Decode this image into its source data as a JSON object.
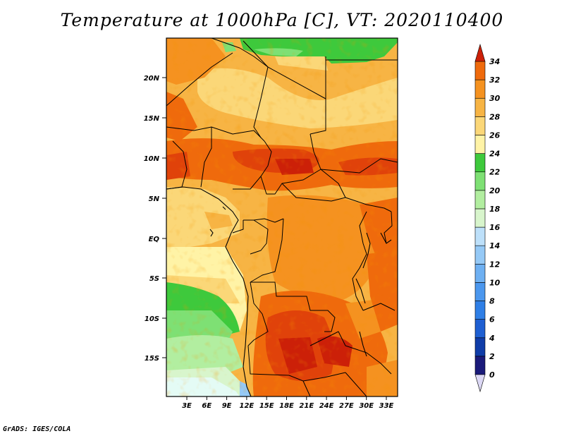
{
  "title": "Temperature at 1000hPa [C], VT: 2020110400",
  "credit": "GrADS: IGES/COLA",
  "map": {
    "lat_labels": [
      "20N",
      "15N",
      "10N",
      "5N",
      "EQ",
      "5S",
      "10S",
      "15S"
    ],
    "lon_labels": [
      "3E",
      "6E",
      "9E",
      "12E",
      "15E",
      "18E",
      "21E",
      "24E",
      "27E",
      "30E",
      "33E"
    ]
  },
  "colorbar": {
    "labels": [
      "0",
      "2",
      "4",
      "6",
      "8",
      "10",
      "12",
      "14",
      "16",
      "18",
      "20",
      "22",
      "24",
      "26",
      "28",
      "30",
      "32",
      "34"
    ],
    "colors": [
      "#1a1a7a",
      "#0f3ca8",
      "#1e5fd2",
      "#2f7fe6",
      "#4b97ee",
      "#6eb0f2",
      "#95c9f6",
      "#bde0fa",
      "#d8f5cc",
      "#b2eea0",
      "#7ee074",
      "#3ec93c",
      "#fff3a6",
      "#fbd778",
      "#f7b444",
      "#f59220",
      "#ef6a0c",
      "#e0420a",
      "#cc2008"
    ],
    "low_cap_color": "#dcd8f5",
    "high_cap_color": "#cc2008"
  }
}
